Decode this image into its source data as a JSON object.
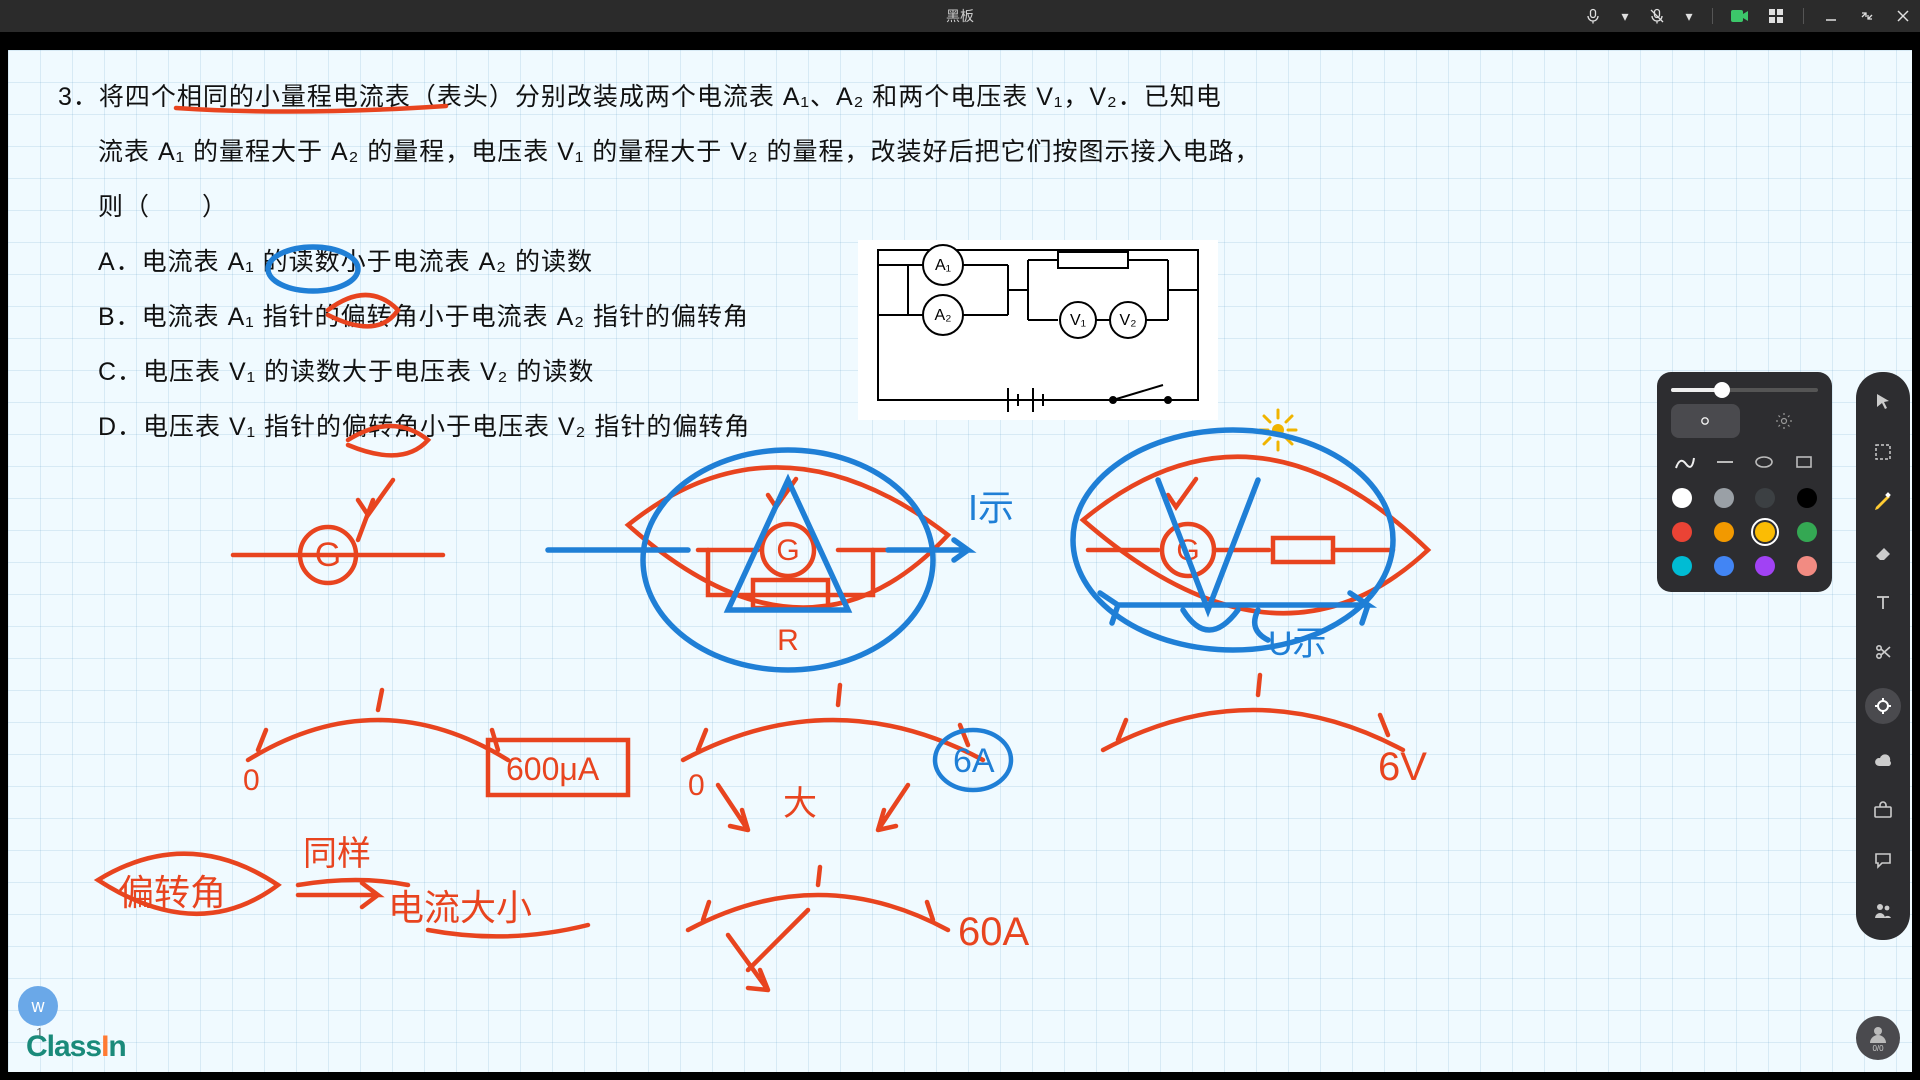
{
  "titlebar": {
    "title": "黑板"
  },
  "problem": {
    "number": "3．",
    "stem_l1": "将四个相同的小量程电流表（表头）分别改装成两个电流表 A₁、A₂ 和两个电压表 V₁，V₂．已知电",
    "stem_l2": "流表 A₁ 的量程大于 A₂ 的量程，电压表 V₁ 的量程大于 V₂ 的量程，改装好后把它们按图示接入电路，",
    "stem_l3": "则（　　）",
    "optA": "A．电流表 A₁ 的读数小于电流表 A₂ 的读数",
    "optB": "B．电流表 A₁ 指针的偏转角小于电流表 A₂ 指针的偏转角",
    "optC": "C．电压表 V₁ 的读数大于电压表 V₂ 的读数",
    "optD": "D．电压表 V₁ 指针的偏转角小于电压表 V₂ 指针的偏转角"
  },
  "circuit": {
    "A1": "A₁",
    "A2": "A₂",
    "V1": "V₁",
    "V2": "V₂"
  },
  "handwriting": {
    "colors": {
      "red": "#e8441f",
      "blue": "#1f7fd6",
      "yellow": "#f0b400"
    },
    "stroke_width": 4.5,
    "labels": {
      "G1": "G",
      "G2": "G",
      "G3": "G",
      "R": "R",
      "Ishi": "I示",
      "Ushi": "U示",
      "ua600": "600μA",
      "six_a": "6A",
      "six_v": "6V",
      "sixty_a": "60A",
      "da": "大",
      "zero1": "0",
      "zero2": "0",
      "pianzhuanjiao": "偏转角",
      "tongyang": "同样",
      "dianliu_daxiao": "电流大小"
    }
  },
  "toolbar": {
    "slider_pct": 35,
    "colors": [
      {
        "hex": "#ffffff",
        "sel": false
      },
      {
        "hex": "#9aa0a6",
        "sel": false
      },
      {
        "hex": "#3c4043",
        "sel": false
      },
      {
        "hex": "#000000",
        "sel": false
      },
      {
        "hex": "#ea4335",
        "sel": false
      },
      {
        "hex": "#f29900",
        "sel": false
      },
      {
        "hex": "#fbbc04",
        "sel": true
      },
      {
        "hex": "#34a853",
        "sel": false
      },
      {
        "hex": "#00bcd4",
        "sel": false
      },
      {
        "hex": "#4285f4",
        "sel": false
      },
      {
        "hex": "#a142f4",
        "sel": false
      },
      {
        "hex": "#f28b82",
        "sel": false
      }
    ]
  },
  "avatars": {
    "bl_letter": "w",
    "bl_count": "1",
    "br_count": "0/0"
  },
  "brand": {
    "pre": "Class",
    "i": "I",
    "post": "n"
  }
}
